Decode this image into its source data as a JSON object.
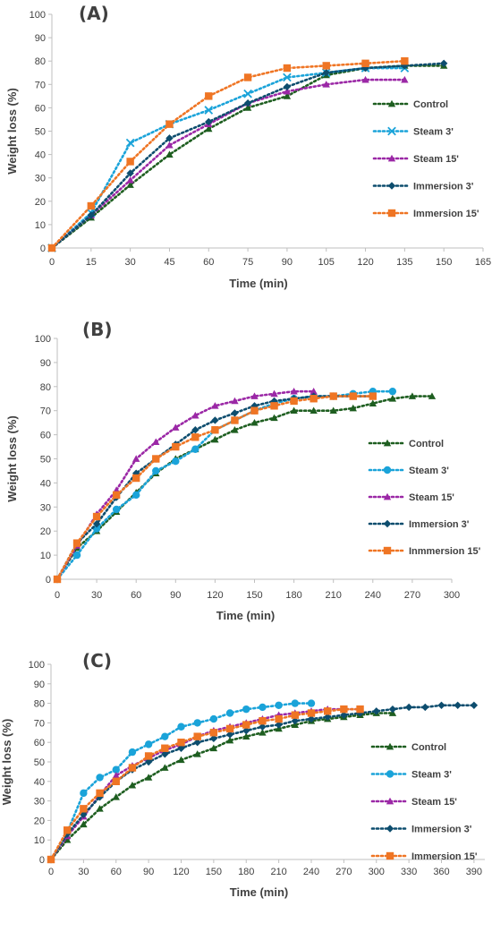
{
  "chart_data": [
    {
      "type": "line",
      "title": "(A)",
      "xlabel": "Time (min)",
      "ylabel": "Weight loss (%)",
      "xlim": [
        0,
        165
      ],
      "ylim": [
        0,
        100
      ],
      "xticks": [
        0,
        15,
        30,
        45,
        60,
        75,
        90,
        105,
        120,
        135,
        150,
        165
      ],
      "yticks": [
        0,
        10,
        20,
        30,
        40,
        50,
        60,
        70,
        80,
        90,
        100
      ],
      "grid": false,
      "legend_position": "right",
      "series": [
        {
          "name": "Control",
          "color": "#1e5e20",
          "marker": "triangle",
          "x": [
            0,
            15,
            30,
            45,
            60,
            75,
            90,
            105,
            120,
            135,
            150
          ],
          "y": [
            0,
            13,
            27,
            40,
            51,
            60,
            65,
            74,
            77,
            78,
            78
          ]
        },
        {
          "name": "Steam 3'",
          "color": "#1aa3d9",
          "marker": "x",
          "x": [
            0,
            15,
            30,
            45,
            60,
            75,
            90,
            105,
            120,
            135
          ],
          "y": [
            0,
            15,
            45,
            53,
            59,
            66,
            73,
            75,
            77,
            77
          ]
        },
        {
          "name": "Steam 15'",
          "color": "#9b28a6",
          "marker": "triangle",
          "x": [
            0,
            15,
            30,
            45,
            60,
            75,
            90,
            105,
            120,
            135
          ],
          "y": [
            0,
            14,
            29,
            44,
            53,
            62,
            67,
            70,
            72,
            72
          ]
        },
        {
          "name": "Immersion 3'",
          "color": "#0d4d6e",
          "marker": "diamond",
          "x": [
            0,
            15,
            30,
            45,
            60,
            75,
            90,
            105,
            120,
            135,
            150
          ],
          "y": [
            0,
            14,
            32,
            47,
            54,
            62,
            69,
            75,
            77,
            78,
            79
          ]
        },
        {
          "name": "Immersion 15'",
          "color": "#ef7524",
          "marker": "square",
          "x": [
            0,
            15,
            30,
            45,
            60,
            75,
            90,
            105,
            120,
            135
          ],
          "y": [
            0,
            18,
            37,
            53,
            65,
            73,
            77,
            78,
            79,
            80
          ]
        }
      ]
    },
    {
      "type": "line",
      "title": "(B)",
      "xlabel": "Time (min)",
      "ylabel": "Weight loss (%)",
      "xlim": [
        0,
        300
      ],
      "ylim": [
        0,
        100
      ],
      "xticks": [
        0,
        30,
        60,
        90,
        120,
        150,
        180,
        210,
        240,
        270,
        300
      ],
      "yticks": [
        0,
        10,
        20,
        30,
        40,
        50,
        60,
        70,
        80,
        90,
        100
      ],
      "grid": false,
      "legend_position": "right",
      "series": [
        {
          "name": "Control",
          "color": "#1e5e20",
          "marker": "triangle",
          "x": [
            0,
            15,
            30,
            45,
            60,
            75,
            90,
            105,
            120,
            135,
            150,
            165,
            180,
            195,
            210,
            225,
            240,
            255,
            270,
            285
          ],
          "y": [
            0,
            13,
            20,
            28,
            36,
            44,
            50,
            54,
            58,
            62,
            65,
            67,
            70,
            70,
            70,
            71,
            73,
            75,
            76,
            76
          ]
        },
        {
          "name": "Steam 3'",
          "color": "#1aa3d9",
          "marker": "circle",
          "x": [
            0,
            15,
            30,
            45,
            60,
            75,
            90,
            105,
            120,
            135,
            150,
            165,
            180,
            195,
            210,
            225,
            240,
            255
          ],
          "y": [
            0,
            10,
            21,
            29,
            35,
            45,
            49,
            54,
            62,
            66,
            70,
            73,
            75,
            76,
            76,
            77,
            78,
            78
          ]
        },
        {
          "name": "Steam 15'",
          "color": "#9b28a6",
          "marker": "triangle",
          "x": [
            0,
            15,
            30,
            45,
            60,
            75,
            90,
            105,
            120,
            135,
            150,
            165,
            180,
            195
          ],
          "y": [
            0,
            14,
            27,
            37,
            50,
            57,
            63,
            68,
            72,
            74,
            76,
            77,
            78,
            78
          ]
        },
        {
          "name": "Immersion 3'",
          "color": "#0d4d6e",
          "marker": "diamond",
          "x": [
            0,
            15,
            30,
            45,
            60,
            75,
            90,
            105,
            120,
            135,
            150,
            165,
            180,
            195,
            210,
            225,
            240
          ],
          "y": [
            0,
            15,
            23,
            34,
            44,
            50,
            56,
            62,
            66,
            69,
            72,
            74,
            75,
            76,
            76,
            76,
            76
          ]
        },
        {
          "name": "Inmmersion 15'",
          "color": "#ef7524",
          "marker": "square",
          "x": [
            0,
            15,
            30,
            45,
            60,
            75,
            90,
            105,
            120,
            135,
            150,
            165,
            180,
            195,
            210,
            225,
            240
          ],
          "y": [
            0,
            15,
            26,
            35,
            42,
            50,
            55,
            59,
            62,
            66,
            70,
            72,
            74,
            75,
            76,
            76,
            76
          ]
        }
      ]
    },
    {
      "type": "line",
      "title": "(C)",
      "xlabel": "Time (min)",
      "ylabel": "Weight loss (%)",
      "xlim": [
        0,
        400
      ],
      "ylim": [
        0,
        100
      ],
      "xticks": [
        0,
        30,
        60,
        90,
        120,
        150,
        180,
        210,
        240,
        270,
        300,
        330,
        360,
        390
      ],
      "yticks": [
        0,
        10,
        20,
        30,
        40,
        50,
        60,
        70,
        80,
        90,
        100
      ],
      "grid": false,
      "legend_position": "right",
      "series": [
        {
          "name": "Control",
          "color": "#1e5e20",
          "marker": "triangle",
          "x": [
            0,
            15,
            30,
            45,
            60,
            75,
            90,
            105,
            120,
            135,
            150,
            165,
            180,
            195,
            210,
            225,
            240,
            255,
            270,
            285,
            300,
            315
          ],
          "y": [
            0,
            10,
            18,
            26,
            32,
            38,
            42,
            47,
            51,
            54,
            57,
            61,
            63,
            65,
            67,
            69,
            71,
            72,
            73,
            74,
            75,
            75
          ]
        },
        {
          "name": "Steam 3'",
          "color": "#1aa3d9",
          "marker": "circle",
          "x": [
            0,
            15,
            30,
            45,
            60,
            75,
            90,
            105,
            120,
            135,
            150,
            165,
            180,
            195,
            210,
            225,
            240
          ],
          "y": [
            0,
            14,
            34,
            42,
            46,
            55,
            59,
            63,
            68,
            70,
            72,
            75,
            77,
            78,
            79,
            80,
            80
          ]
        },
        {
          "name": "Steam 15'",
          "color": "#9b28a6",
          "marker": "triangle",
          "x": [
            0,
            15,
            30,
            45,
            60,
            75,
            90,
            105,
            120,
            135,
            150,
            165,
            180,
            195,
            210,
            225,
            240,
            255,
            270,
            285
          ],
          "y": [
            0,
            12,
            22,
            33,
            43,
            48,
            52,
            56,
            59,
            63,
            66,
            68,
            70,
            72,
            74,
            75,
            76,
            77,
            77,
            77
          ]
        },
        {
          "name": "Immersion 3'",
          "color": "#0d4d6e",
          "marker": "diamond",
          "x": [
            0,
            15,
            30,
            45,
            60,
            75,
            90,
            105,
            120,
            135,
            150,
            165,
            180,
            195,
            210,
            225,
            240,
            255,
            270,
            285,
            300,
            315,
            330,
            345,
            360,
            375,
            390
          ],
          "y": [
            0,
            13,
            23,
            32,
            40,
            46,
            50,
            54,
            57,
            60,
            62,
            64,
            66,
            68,
            69,
            71,
            72,
            73,
            74,
            75,
            76,
            77,
            78,
            78,
            79,
            79,
            79
          ]
        },
        {
          "name": "Immersion 15'",
          "color": "#ef7524",
          "marker": "square",
          "x": [
            0,
            15,
            30,
            45,
            60,
            75,
            90,
            105,
            120,
            135,
            150,
            165,
            180,
            195,
            210,
            225,
            240,
            255,
            270,
            285
          ],
          "y": [
            0,
            15,
            26,
            34,
            40,
            47,
            53,
            57,
            60,
            63,
            65,
            67,
            69,
            71,
            72,
            74,
            75,
            76,
            77,
            77
          ]
        }
      ]
    }
  ]
}
